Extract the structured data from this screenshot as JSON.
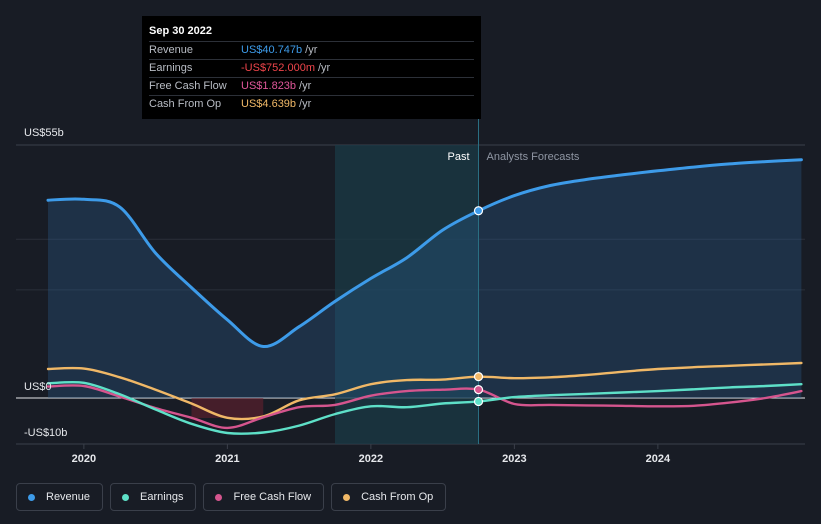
{
  "tooltip": {
    "date": "Sep 30 2022",
    "rows": [
      {
        "label": "Revenue",
        "value": "US$40.747b",
        "unit": "/yr",
        "color": "#3d9be9"
      },
      {
        "label": "Earnings",
        "value": "-US$752.000m",
        "unit": "/yr",
        "color": "#f0454b"
      },
      {
        "label": "Free Cash Flow",
        "value": "US$1.823b",
        "unit": "/yr",
        "color": "#e0579a"
      },
      {
        "label": "Cash From Op",
        "value": "US$4.639b",
        "unit": "/yr",
        "color": "#f0b867"
      }
    ]
  },
  "chart_data": {
    "type": "line",
    "y_axis_labels": [
      "US$55b",
      "US$0",
      "-US$10b"
    ],
    "ylim": [
      -10,
      55
    ],
    "xlim": [
      2019.75,
      2025.0
    ],
    "x_ticks": [
      {
        "value": 2020,
        "label": "2020"
      },
      {
        "value": 2021,
        "label": "2021"
      },
      {
        "value": 2022,
        "label": "2022"
      },
      {
        "value": 2023,
        "label": "2023"
      },
      {
        "value": 2024,
        "label": "2024"
      }
    ],
    "past_label": "Past",
    "forecast_label": "Analysts Forecasts",
    "divider_x": 2022.75,
    "highlight_start_x": 2021.75,
    "grid": true,
    "legend_position": "bottom",
    "series": [
      {
        "name": "Revenue",
        "color": "#3d9be9",
        "area": true,
        "x": [
          2019.75,
          2020.0,
          2020.25,
          2020.5,
          2020.75,
          2021.0,
          2021.25,
          2021.5,
          2021.75,
          2022.0,
          2022.25,
          2022.5,
          2022.75,
          2023.0,
          2023.25,
          2023.5,
          2023.75,
          2024.0,
          2024.25,
          2024.5,
          2024.75,
          2025.0
        ],
        "y": [
          43.0,
          43.2,
          41.5,
          31.5,
          24.0,
          17.0,
          11.2,
          15.5,
          21.0,
          26.0,
          30.5,
          36.5,
          40.7,
          44.0,
          46.2,
          47.5,
          48.5,
          49.4,
          50.2,
          50.9,
          51.4,
          51.8
        ]
      },
      {
        "name": "Earnings",
        "color": "#5ee0c8",
        "x": [
          2019.75,
          2020.0,
          2020.25,
          2020.5,
          2020.75,
          2021.0,
          2021.25,
          2021.5,
          2021.75,
          2022.0,
          2022.25,
          2022.5,
          2022.75,
          2023.0,
          2023.25,
          2023.5,
          2023.75,
          2024.0,
          2024.25,
          2024.5,
          2024.75,
          2025.0
        ],
        "y": [
          3.2,
          3.3,
          0.8,
          -2.5,
          -5.6,
          -7.6,
          -7.5,
          -6.0,
          -3.5,
          -1.8,
          -2.0,
          -1.2,
          -0.75,
          0.2,
          0.6,
          0.9,
          1.2,
          1.5,
          1.9,
          2.3,
          2.6,
          3.0
        ]
      },
      {
        "name": "Free Cash Flow",
        "color": "#d5558e",
        "x": [
          2019.75,
          2020.0,
          2020.25,
          2020.5,
          2020.75,
          2021.0,
          2021.25,
          2021.5,
          2021.75,
          2022.0,
          2022.25,
          2022.5,
          2022.75,
          2023.0,
          2023.25,
          2023.5,
          2023.75,
          2024.0,
          2024.25,
          2024.5,
          2024.75,
          2025.0
        ],
        "y": [
          2.5,
          2.6,
          0.3,
          -2.2,
          -4.3,
          -6.5,
          -4.2,
          -2.0,
          -1.5,
          0.5,
          1.5,
          1.8,
          1.82,
          -1.3,
          -1.5,
          -1.6,
          -1.7,
          -1.8,
          -1.7,
          -1.0,
          0.0,
          1.5
        ]
      },
      {
        "name": "Cash From Op",
        "color": "#f0b867",
        "x": [
          2019.75,
          2020.0,
          2020.25,
          2020.5,
          2020.75,
          2021.0,
          2021.25,
          2021.5,
          2021.75,
          2022.0,
          2022.25,
          2022.5,
          2022.75,
          2023.0,
          2023.25,
          2023.5,
          2023.75,
          2024.0,
          2024.25,
          2024.5,
          2024.75,
          2025.0
        ],
        "y": [
          6.3,
          6.4,
          4.5,
          1.8,
          -1.2,
          -4.3,
          -4.0,
          -0.5,
          0.8,
          3.0,
          3.9,
          4.0,
          4.64,
          4.3,
          4.5,
          5.0,
          5.7,
          6.3,
          6.7,
          7.0,
          7.3,
          7.6
        ]
      }
    ]
  },
  "legend": {
    "items": [
      {
        "label": "Revenue",
        "color": "#3d9be9"
      },
      {
        "label": "Earnings",
        "color": "#5ee0c8"
      },
      {
        "label": "Free Cash Flow",
        "color": "#d5558e"
      },
      {
        "label": "Cash From Op",
        "color": "#f0b867"
      }
    ]
  }
}
